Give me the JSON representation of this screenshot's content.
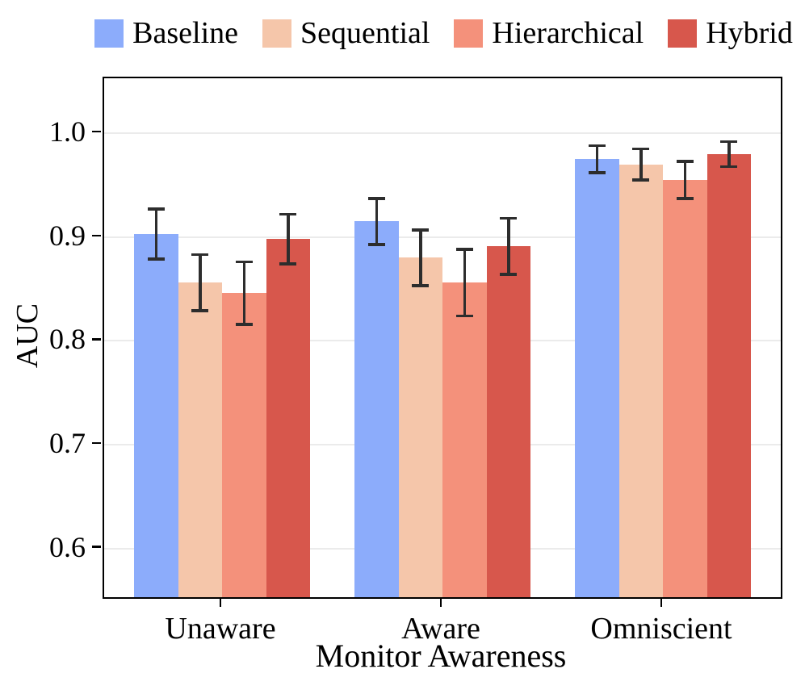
{
  "chart_data": {
    "type": "bar",
    "title": "",
    "xlabel": "Monitor Awareness",
    "ylabel": "AUC",
    "categories": [
      "Unaware",
      "Aware",
      "Omniscient"
    ],
    "series": [
      {
        "name": "Baseline",
        "color": "#8CACFB",
        "values": [
          0.903,
          0.915,
          0.975
        ],
        "errors": [
          0.024,
          0.022,
          0.013
        ]
      },
      {
        "name": "Sequential",
        "color": "#F5C6AA",
        "values": [
          0.856,
          0.88,
          0.97
        ],
        "errors": [
          0.027,
          0.027,
          0.015
        ]
      },
      {
        "name": "Hierarchical",
        "color": "#F4917B",
        "values": [
          0.846,
          0.856,
          0.955
        ],
        "errors": [
          0.03,
          0.032,
          0.018
        ]
      },
      {
        "name": "Hybrid",
        "color": "#D7574C",
        "values": [
          0.898,
          0.891,
          0.98
        ],
        "errors": [
          0.024,
          0.027,
          0.012
        ]
      }
    ],
    "y_ticks": [
      0.6,
      0.7,
      0.8,
      0.9,
      1.0
    ],
    "ylim": [
      0.553,
      1.053
    ],
    "grid": true,
    "legend_position": "top",
    "colors": {
      "error_bar": "#2d2d2d",
      "gridline": "#ebebeb",
      "spine": "#000000",
      "background": "#ffffff"
    }
  }
}
